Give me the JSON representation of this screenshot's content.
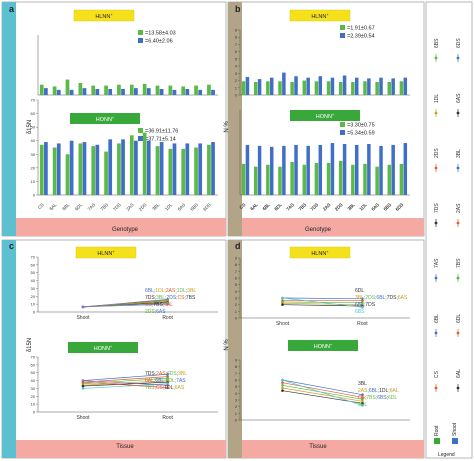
{
  "panels": {
    "a": {
      "letter": "a",
      "strip_label": "Genotype",
      "ylabel": "δ15N",
      "ylabel_sup": ""
    },
    "b": {
      "letter": "b",
      "strip_label": "Genotype",
      "ylabel": "N %"
    },
    "c": {
      "letter": "c",
      "strip_label": "Tissue",
      "ylabel": "δ15N"
    },
    "d": {
      "letter": "d",
      "strip_label": "Tissue",
      "ylabel": "N %"
    }
  },
  "legend": {
    "title": "Legend",
    "root": "Root",
    "shoot": "Shoot"
  },
  "colors": {
    "green": "#5BB947",
    "blue": "#3F6FC6",
    "yellow": "#F5E11B",
    "teal": "#5CC0D1",
    "salmon": "#F5A9A3",
    "taupe": "#B1A487",
    "darkgreen": "#39A83A"
  },
  "chart_data": [
    {
      "id": "a-hlnn",
      "type": "bar",
      "tag": "HLNN",
      "tag_sup": "+",
      "categories": [
        "CS",
        "6AL",
        "6BL",
        "6DL",
        "7AS",
        "7BS",
        "7DS",
        "2AS",
        "2DS",
        "3BL",
        "1DL",
        "6AS",
        "6BS",
        "6DS"
      ],
      "series": [
        {
          "name": "=13.58±4.03",
          "values": [
            12,
            10,
            18,
            14,
            11,
            11,
            12,
            12,
            13,
            11,
            11,
            10,
            11,
            12
          ]
        },
        {
          "name": "=6.40±2.06",
          "values": [
            8,
            6,
            6,
            8,
            7,
            7,
            7,
            8,
            8,
            7,
            6,
            7,
            6,
            6
          ]
        }
      ],
      "ylim": [
        0,
        70
      ]
    },
    {
      "id": "a-honn",
      "type": "bar",
      "tag": "HONN",
      "tag_sup": "+",
      "categories": [
        "CS",
        "6AL",
        "6BL",
        "6DL",
        "7AS",
        "7BS",
        "7DS",
        "2AS",
        "2DS",
        "3BL",
        "1DL",
        "6AS",
        "6BS",
        "6DS"
      ],
      "series": [
        {
          "name": "=36.91±11.76",
          "values": [
            37,
            35,
            30,
            38,
            36,
            32,
            38,
            44,
            46,
            36,
            34,
            34,
            35,
            37
          ]
        },
        {
          "name": "=37.71±5.14",
          "values": [
            39,
            38,
            40,
            39,
            37,
            41,
            41,
            40,
            40,
            39,
            38,
            38,
            38,
            39
          ]
        }
      ],
      "ylim": [
        0,
        70
      ]
    },
    {
      "id": "b-hlnn",
      "type": "bar",
      "tag": "HLNN",
      "tag_sup": "+",
      "categories": [
        "CS",
        "6AL",
        "6BL",
        "6DL",
        "7AS",
        "7BS",
        "7DS",
        "2AS",
        "2DS",
        "3BL",
        "1DL",
        "6AS",
        "6BS",
        "6DS"
      ],
      "series": [
        {
          "name": "=1.91±0.67",
          "values": [
            1.9,
            1.8,
            1.9,
            1.9,
            1.8,
            2.0,
            1.9,
            1.9,
            1.8,
            1.8,
            1.9,
            1.8,
            1.8,
            1.9
          ]
        },
        {
          "name": "=2.39±0.54",
          "values": [
            2.5,
            2.2,
            2.4,
            3.1,
            2.6,
            2.4,
            2.6,
            2.4,
            2.7,
            2.4,
            2.3,
            2.4,
            2.3,
            2.4
          ]
        }
      ],
      "ylim": [
        0,
        9
      ]
    },
    {
      "id": "b-honn",
      "type": "bar",
      "tag": "HONN",
      "tag_sup": "+",
      "categories": [
        "CS",
        "6AL",
        "6BL",
        "6DL",
        "7AS",
        "7BS",
        "7DS",
        "2AS",
        "2DS",
        "3BL",
        "1DL",
        "6AS",
        "6BS",
        "6DS"
      ],
      "series": [
        {
          "name": "=3.30±0.75",
          "values": [
            3.3,
            3.0,
            3.2,
            3.0,
            3.5,
            3.2,
            3.4,
            3.4,
            3.6,
            3.2,
            3.3,
            3.0,
            3.2,
            3.3
          ]
        },
        {
          "name": "=5.34±0.59",
          "values": [
            5.3,
            5.2,
            5.1,
            5.2,
            5.3,
            5.2,
            5.3,
            5.5,
            5.4,
            5.3,
            5.4,
            5.2,
            5.3,
            5.5
          ]
        }
      ],
      "ylim": [
        0,
        9
      ]
    },
    {
      "id": "c-hlnn",
      "type": "line",
      "tag": "HLNN",
      "tag_sup": "+",
      "x": [
        "Shoot",
        "Root"
      ],
      "shoot_value": 6.5,
      "root_values": [
        16,
        15,
        14,
        13,
        12,
        11,
        10
      ],
      "ylim": [
        0,
        70
      ],
      "annotations": [
        {
          "text": "6BL",
          "color": "#3F6FC6"
        },
        {
          "text": "1DL",
          "color": "#C8A020"
        },
        {
          "text": "2AS",
          "color": "#E35D2A"
        },
        {
          "text": "1DL",
          "color": "#5BB947"
        },
        {
          "text": "3BL",
          "color": "#C8A020"
        },
        {
          "text": "7DS",
          "color": "#333333"
        },
        {
          "text": "3BL",
          "color": "#5BB947"
        },
        {
          "text": "2DS",
          "color": "#3F6FC6"
        },
        {
          "text": "CS",
          "color": "#E35D2A"
        },
        {
          "text": "7BS",
          "color": "#333333"
        },
        {
          "text": "6AL",
          "color": "#E35D2A"
        },
        {
          "text": "2DS",
          "color": "#5BB947"
        },
        {
          "text": "6AS",
          "color": "#3F6FC6"
        }
      ]
    },
    {
      "id": "c-honn",
      "type": "line",
      "tag": "HONN",
      "tag_sup": "+",
      "x": [
        "Shoot",
        "Root"
      ],
      "shoot_values": [
        40,
        38,
        36,
        34,
        33,
        30
      ],
      "root_values": [
        48,
        45,
        43,
        40,
        38,
        36,
        34,
        31
      ],
      "ylim": [
        0,
        70
      ],
      "annotations": [
        {
          "text": "7DS",
          "color": "#333333"
        },
        {
          "text": "2AS",
          "color": "#E35D2A"
        },
        {
          "text": "6DS",
          "color": "#5BB947"
        },
        {
          "text": "3BL",
          "color": "#C8A020"
        },
        {
          "text": "6AL",
          "color": "#E35D2A"
        },
        {
          "text": "6BL",
          "color": "#3F6FC6"
        },
        {
          "text": "6DL",
          "color": "#5BB947"
        },
        {
          "text": "7AS",
          "color": "#3F6FC6"
        },
        {
          "text": "7BS",
          "color": "#5BB947"
        },
        {
          "text": "CS",
          "color": "#E35D2A"
        },
        {
          "text": "1DL",
          "color": "#333333"
        },
        {
          "text": "6AS",
          "color": "#C8A020"
        }
      ]
    },
    {
      "id": "d-hlnn",
      "type": "line",
      "tag": "HLNN",
      "tag_sup": "+",
      "x": [
        "Shoot",
        "Root"
      ],
      "shoot_values": [
        3.0,
        2.6,
        2.4,
        2.2,
        2.0
      ],
      "root_values": [
        2.9,
        2.6,
        2.3,
        2.0,
        1.8,
        1.6
      ],
      "ylim": [
        0,
        9
      ],
      "annotations": [
        {
          "text": "6DL",
          "color": "#333333"
        },
        {
          "text": "7AS",
          "color": "#333333"
        },
        {
          "text": "2AS",
          "color": "#E35D2A"
        },
        {
          "text": "1DL",
          "color": "#5BB947"
        },
        {
          "text": "CS",
          "color": "#3F6FC6"
        },
        {
          "text": "3BL",
          "color": "#C8A020"
        },
        {
          "text": "2DS",
          "color": "#5BB947"
        },
        {
          "text": "6BL",
          "color": "#3F6FC6"
        },
        {
          "text": "7DS",
          "color": "#333333"
        },
        {
          "text": "6AS",
          "color": "#C8A020"
        },
        {
          "text": "6BS",
          "color": "#5CC0D1"
        }
      ]
    },
    {
      "id": "d-honn",
      "type": "line",
      "tag": "HONN",
      "tag_sup": "+",
      "x": [
        "Shoot",
        "Root"
      ],
      "shoot_values": [
        6.0,
        5.6,
        5.2,
        4.8,
        4.4
      ],
      "root_values": [
        3.8,
        3.4,
        3.1,
        2.8,
        2.5,
        2.2
      ],
      "ylim": [
        0,
        9
      ],
      "annotations": [
        {
          "text": "3BL",
          "color": "#333333"
        },
        {
          "text": "6DS",
          "color": "#5BB947"
        },
        {
          "text": "2DS",
          "color": "#3F6FC6"
        },
        {
          "text": "7AS",
          "color": "#E35D2A"
        },
        {
          "text": "2AS",
          "color": "#C8A020"
        },
        {
          "text": "6BL",
          "color": "#3F6FC6"
        },
        {
          "text": "1DL",
          "color": "#333333"
        },
        {
          "text": "6AL",
          "color": "#C8A020"
        },
        {
          "text": "CS",
          "color": "#E35D2A"
        },
        {
          "text": "7BS",
          "color": "#5BB947"
        },
        {
          "text": "6BS",
          "color": "#3F6FC6"
        },
        {
          "text": "6DL",
          "color": "#5BB947"
        }
      ]
    }
  ],
  "legend_items": [
    {
      "top": "6BS",
      "bottom": "6DS",
      "c1": "#5BB947",
      "c2": "#3F6FC6"
    },
    {
      "top": "1DL",
      "bottom": "6AS",
      "c1": "#C8A020",
      "c2": "#333333"
    },
    {
      "top": "2DS",
      "bottom": "3BL",
      "c1": "#E35D2A",
      "c2": "#3F6FC6"
    },
    {
      "top": "7DS",
      "bottom": "2AS",
      "c1": "#333333",
      "c2": "#E35D2A"
    },
    {
      "top": "7AS",
      "bottom": "7BS",
      "c1": "#3F6FC6",
      "c2": "#5BB947"
    },
    {
      "top": "6BL",
      "bottom": "6DL",
      "c1": "#3F6FC6",
      "c2": "#E35D2A"
    },
    {
      "top": "CS",
      "bottom": "6AL",
      "c1": "#E35D2A",
      "c2": "#333333"
    }
  ]
}
